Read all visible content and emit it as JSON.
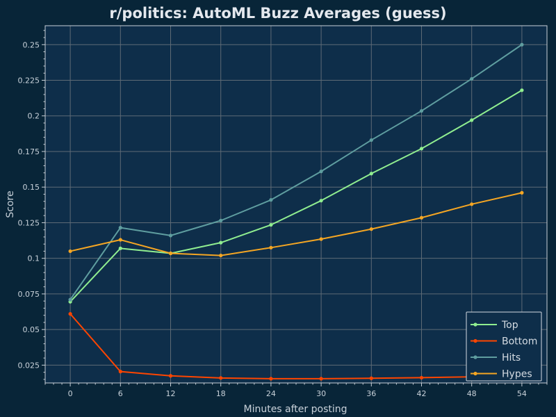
{
  "chart_data": {
    "type": "line",
    "title": "r/politics: AutoML Buzz Averages (guess)",
    "xlabel": "Minutes after posting",
    "ylabel": "Score",
    "x": [
      0,
      6,
      12,
      18,
      24,
      30,
      36,
      42,
      48,
      54
    ],
    "x_ticks": [
      "0",
      "6",
      "12",
      "18",
      "24",
      "30",
      "36",
      "42",
      "48",
      "54"
    ],
    "y_ticks": [
      "0.025",
      "0.05",
      "0.075",
      "0.1",
      "0.125",
      "0.15",
      "0.175",
      "0.2",
      "0.225",
      "0.25"
    ],
    "xlim": [
      -3,
      57
    ],
    "ylim": [
      0.0125,
      0.2633
    ],
    "grid": true,
    "legend_position": "lower-right",
    "series": [
      {
        "name": "Top",
        "color": "#90ee90",
        "values": [
          0.0695,
          0.107,
          0.1035,
          0.111,
          0.1235,
          0.1405,
          0.1595,
          0.177,
          0.197,
          0.218
        ]
      },
      {
        "name": "Bottom",
        "color": "#ff4500",
        "values": [
          0.061,
          0.0205,
          0.0175,
          0.016,
          0.0155,
          0.0155,
          0.0158,
          0.0162,
          0.0168,
          0.0175
        ]
      },
      {
        "name": "Hits",
        "color": "#5f9ea0",
        "values": [
          0.071,
          0.1215,
          0.116,
          0.1265,
          0.141,
          0.161,
          0.183,
          0.2035,
          0.226,
          0.25
        ]
      },
      {
        "name": "Hypes",
        "color": "#f5a623",
        "values": [
          0.105,
          0.113,
          0.1035,
          0.102,
          0.1075,
          0.1135,
          0.1205,
          0.1285,
          0.138,
          0.146
        ]
      }
    ]
  }
}
